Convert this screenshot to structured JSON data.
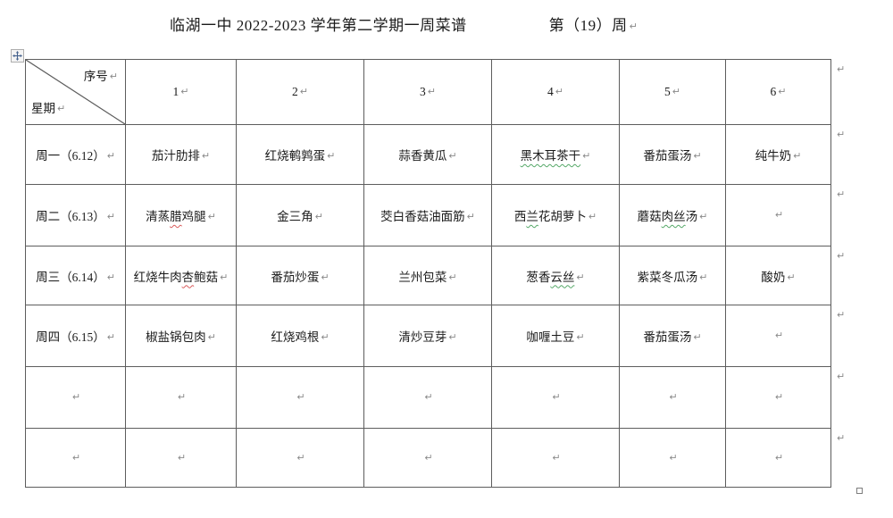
{
  "page": {
    "title_main": "临湖一中 2022-2023 学年第二学期一周菜谱",
    "title_week": "第（19）周",
    "eol_mark": "↵"
  },
  "table": {
    "corner": {
      "top_right": "序号",
      "bottom_left": "星期"
    },
    "columns": [
      "1",
      "2",
      "3",
      "4",
      "5",
      "6"
    ],
    "rows": [
      {
        "day": "周一（6.12）",
        "dishes": [
          [
            {
              "t": "茄汁肋排"
            }
          ],
          [
            {
              "t": "红烧鹌鹑蛋"
            }
          ],
          [
            {
              "t": "蒜香黄瓜"
            }
          ],
          [
            {
              "t": "黑木耳茶干",
              "u": "green"
            }
          ],
          [
            {
              "t": "番茄蛋汤"
            }
          ],
          [
            {
              "t": "纯牛奶"
            }
          ]
        ]
      },
      {
        "day": "周二（6.13）",
        "dishes": [
          [
            {
              "t": "清蒸"
            },
            {
              "t": "腊",
              "u": "red"
            },
            {
              "t": "鸡腿"
            }
          ],
          [
            {
              "t": "金三角"
            }
          ],
          [
            {
              "t": "茭白香菇油面筋"
            }
          ],
          [
            {
              "t": "西"
            },
            {
              "t": "兰",
              "u": "green"
            },
            {
              "t": "花胡萝卜"
            }
          ],
          [
            {
              "t": "蘑菇"
            },
            {
              "t": "肉丝",
              "u": "green"
            },
            {
              "t": "汤"
            }
          ],
          []
        ]
      },
      {
        "day": "周三（6.14）",
        "dishes": [
          [
            {
              "t": "红烧牛肉"
            },
            {
              "t": "杏",
              "u": "red"
            },
            {
              "t": "鲍菇"
            }
          ],
          [
            {
              "t": "番茄炒蛋"
            }
          ],
          [
            {
              "t": "兰州包菜"
            }
          ],
          [
            {
              "t": "葱香"
            },
            {
              "t": "云丝",
              "u": "green"
            }
          ],
          [
            {
              "t": "紫菜冬瓜汤"
            }
          ],
          [
            {
              "t": "酸奶"
            }
          ]
        ]
      },
      {
        "day": "周四（6.15）",
        "dishes": [
          [
            {
              "t": "椒盐锅包肉"
            }
          ],
          [
            {
              "t": "红烧鸡根"
            }
          ],
          [
            {
              "t": "清炒豆芽"
            }
          ],
          [
            {
              "t": "咖喱土豆"
            }
          ],
          [
            {
              "t": "番茄蛋汤"
            }
          ],
          []
        ]
      },
      {
        "day": "",
        "dishes": [
          [],
          [],
          [],
          [],
          [],
          []
        ]
      },
      {
        "day": "",
        "dishes": [
          [],
          [],
          [],
          [],
          [],
          []
        ]
      }
    ]
  },
  "icons": {
    "move_handle": "table-move-handle",
    "resize_handle": "table-resize-handle",
    "end_of_cell_mark": "end-of-cell-mark"
  },
  "colors": {
    "border": "#5d5d5d",
    "spell_error_red": "#d95b5b",
    "grammar_green": "#55a868",
    "text": "#1a1a1a",
    "mark_gray": "#8a8a8a",
    "handle_arrow_blue": "#44618c"
  }
}
